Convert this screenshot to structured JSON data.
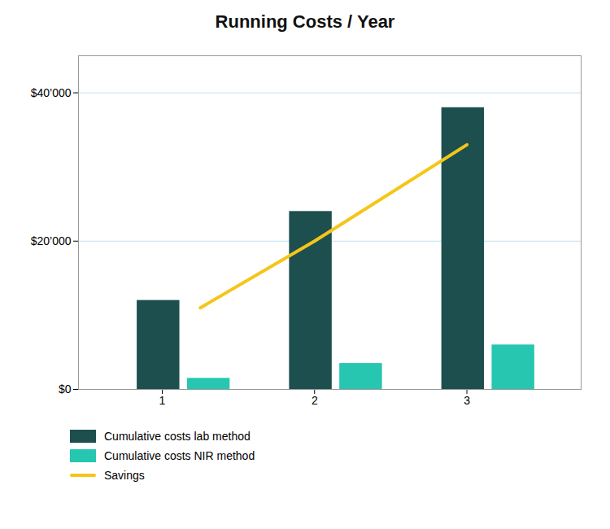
{
  "chart_data": {
    "type": "bar",
    "title": "Running Costs / Year",
    "x": [
      1,
      2,
      3
    ],
    "xlim": [
      0.45,
      3.75
    ],
    "xticks": [
      1,
      2,
      3
    ],
    "ylim": [
      0,
      45000
    ],
    "yticks": [
      {
        "value": 0,
        "label": "$0"
      },
      {
        "value": 20000,
        "label": "$20’000"
      },
      {
        "value": 40000,
        "label": "$40’000"
      }
    ],
    "grid": true,
    "legend": "bottom",
    "series": [
      {
        "name": "Cumulative costs lab method",
        "type": "bar",
        "color": "#1d4f4f",
        "values": [
          12000,
          24000,
          38000
        ]
      },
      {
        "name": "Cumulative costs NIR method",
        "type": "bar",
        "color": "#26c6b0",
        "values": [
          1500,
          3500,
          6000
        ]
      },
      {
        "name": "Savings",
        "type": "line",
        "color": "#f5c518",
        "x": [
          1.25,
          2,
          3
        ],
        "values": [
          11000,
          20000,
          33000
        ]
      }
    ]
  }
}
